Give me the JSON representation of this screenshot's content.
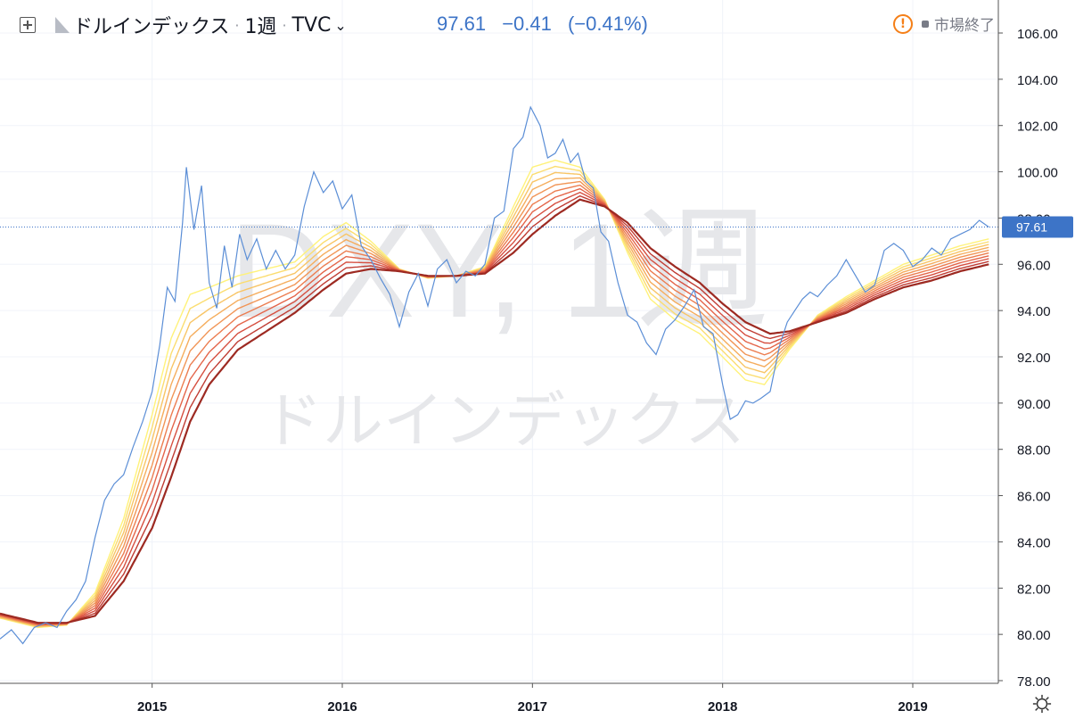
{
  "header": {
    "symbol_name": "ドルインデックス",
    "interval": "1週",
    "exchange": "TVC",
    "icons": [
      "plus-square-icon",
      "flag-icon",
      "chevron-down-icon"
    ]
  },
  "quote": {
    "last": "97.61",
    "change": "−0.41",
    "change_percent": "(−0.41%)"
  },
  "status": {
    "market": "市場終了"
  },
  "watermark": {
    "line1": "DXY, 1週",
    "line2": "ドルインデックス"
  },
  "colors": {
    "price": "#5b8ed6",
    "ribbon": [
      "#fff27a",
      "#fbdd70",
      "#f8c566",
      "#f5ad5d",
      "#f19556",
      "#ec7d50",
      "#e4654a",
      "#d64f40",
      "#c03d34",
      "#9d2a22"
    ],
    "last_label_bg": "#3d74c7"
  },
  "chart_data": {
    "type": "line",
    "title": "",
    "xlabel": "",
    "ylabel": "",
    "ylim": [
      78,
      106
    ],
    "xlim": [
      2014.2,
      2019.45
    ],
    "grid": true,
    "y_ticks": [
      "78.00",
      "80.00",
      "82.00",
      "84.00",
      "86.00",
      "88.00",
      "90.00",
      "92.00",
      "94.00",
      "96.00",
      "98.00",
      "100.00",
      "102.00",
      "104.00",
      "106.00"
    ],
    "x_ticks": [
      {
        "label": "2015",
        "x": 2015
      },
      {
        "label": "2016",
        "x": 2016
      },
      {
        "label": "2017",
        "x": 2017
      },
      {
        "label": "2018",
        "x": 2018
      },
      {
        "label": "2019",
        "x": 2019
      }
    ],
    "last_value_label": "97.61",
    "series": [
      {
        "kind": "price",
        "points": [
          [
            2014.2,
            79.8
          ],
          [
            2014.26,
            80.2
          ],
          [
            2014.32,
            79.6
          ],
          [
            2014.38,
            80.3
          ],
          [
            2014.44,
            80.5
          ],
          [
            2014.5,
            80.3
          ],
          [
            2014.55,
            81.0
          ],
          [
            2014.6,
            81.5
          ],
          [
            2014.65,
            82.3
          ],
          [
            2014.7,
            84.2
          ],
          [
            2014.75,
            85.8
          ],
          [
            2014.8,
            86.5
          ],
          [
            2014.85,
            86.9
          ],
          [
            2014.9,
            88.1
          ],
          [
            2014.95,
            89.2
          ],
          [
            2015.0,
            90.5
          ],
          [
            2015.04,
            92.5
          ],
          [
            2015.08,
            95.0
          ],
          [
            2015.12,
            94.4
          ],
          [
            2015.16,
            97.8
          ],
          [
            2015.18,
            100.2
          ],
          [
            2015.22,
            97.5
          ],
          [
            2015.26,
            99.4
          ],
          [
            2015.3,
            95.2
          ],
          [
            2015.34,
            94.1
          ],
          [
            2015.38,
            96.8
          ],
          [
            2015.42,
            95.0
          ],
          [
            2015.46,
            97.3
          ],
          [
            2015.5,
            96.2
          ],
          [
            2015.55,
            97.1
          ],
          [
            2015.6,
            95.8
          ],
          [
            2015.65,
            96.6
          ],
          [
            2015.7,
            95.8
          ],
          [
            2015.75,
            96.4
          ],
          [
            2015.8,
            98.5
          ],
          [
            2015.85,
            100.0
          ],
          [
            2015.9,
            99.1
          ],
          [
            2015.95,
            99.6
          ],
          [
            2016.0,
            98.4
          ],
          [
            2016.05,
            99.0
          ],
          [
            2016.1,
            96.8
          ],
          [
            2016.15,
            96.2
          ],
          [
            2016.2,
            95.4
          ],
          [
            2016.25,
            94.7
          ],
          [
            2016.3,
            93.3
          ],
          [
            2016.35,
            94.8
          ],
          [
            2016.4,
            95.6
          ],
          [
            2016.45,
            94.2
          ],
          [
            2016.5,
            95.8
          ],
          [
            2016.55,
            96.2
          ],
          [
            2016.6,
            95.2
          ],
          [
            2016.65,
            95.7
          ],
          [
            2016.7,
            95.5
          ],
          [
            2016.75,
            96.0
          ],
          [
            2016.8,
            98.0
          ],
          [
            2016.85,
            98.3
          ],
          [
            2016.9,
            101.0
          ],
          [
            2016.95,
            101.5
          ],
          [
            2016.99,
            102.8
          ],
          [
            2017.04,
            102.0
          ],
          [
            2017.08,
            100.6
          ],
          [
            2017.12,
            100.8
          ],
          [
            2017.16,
            101.4
          ],
          [
            2017.2,
            100.4
          ],
          [
            2017.24,
            100.8
          ],
          [
            2017.28,
            99.6
          ],
          [
            2017.32,
            99.3
          ],
          [
            2017.36,
            97.4
          ],
          [
            2017.4,
            97.0
          ],
          [
            2017.45,
            95.2
          ],
          [
            2017.5,
            93.8
          ],
          [
            2017.55,
            93.5
          ],
          [
            2017.6,
            92.6
          ],
          [
            2017.65,
            92.1
          ],
          [
            2017.7,
            93.2
          ],
          [
            2017.75,
            93.6
          ],
          [
            2017.8,
            94.2
          ],
          [
            2017.85,
            94.9
          ],
          [
            2017.9,
            93.3
          ],
          [
            2017.95,
            93.0
          ],
          [
            2018.0,
            90.8
          ],
          [
            2018.04,
            89.3
          ],
          [
            2018.08,
            89.5
          ],
          [
            2018.12,
            90.1
          ],
          [
            2018.16,
            90.0
          ],
          [
            2018.2,
            90.2
          ],
          [
            2018.25,
            90.5
          ],
          [
            2018.3,
            92.5
          ],
          [
            2018.34,
            93.5
          ],
          [
            2018.38,
            94.0
          ],
          [
            2018.42,
            94.5
          ],
          [
            2018.46,
            94.8
          ],
          [
            2018.5,
            94.6
          ],
          [
            2018.55,
            95.1
          ],
          [
            2018.6,
            95.5
          ],
          [
            2018.65,
            96.2
          ],
          [
            2018.7,
            95.5
          ],
          [
            2018.75,
            94.8
          ],
          [
            2018.8,
            95.1
          ],
          [
            2018.85,
            96.6
          ],
          [
            2018.9,
            96.9
          ],
          [
            2018.95,
            96.6
          ],
          [
            2019.0,
            95.9
          ],
          [
            2019.05,
            96.2
          ],
          [
            2019.1,
            96.7
          ],
          [
            2019.15,
            96.4
          ],
          [
            2019.2,
            97.1
          ],
          [
            2019.25,
            97.3
          ],
          [
            2019.3,
            97.5
          ],
          [
            2019.35,
            97.9
          ],
          [
            2019.4,
            97.61
          ]
        ]
      },
      {
        "kind": "ribbon-fast",
        "points": [
          [
            2014.2,
            80.7
          ],
          [
            2014.4,
            80.3
          ],
          [
            2014.55,
            80.4
          ],
          [
            2014.7,
            81.8
          ],
          [
            2014.85,
            85.0
          ],
          [
            2015.0,
            89.5
          ],
          [
            2015.1,
            92.8
          ],
          [
            2015.2,
            94.7
          ],
          [
            2015.3,
            95.0
          ],
          [
            2015.45,
            95.5
          ],
          [
            2015.6,
            95.8
          ],
          [
            2015.75,
            96.1
          ],
          [
            2015.9,
            97.2
          ],
          [
            2016.02,
            97.8
          ],
          [
            2016.15,
            97.0
          ],
          [
            2016.3,
            95.8
          ],
          [
            2016.45,
            95.4
          ],
          [
            2016.6,
            95.5
          ],
          [
            2016.75,
            95.9
          ],
          [
            2016.9,
            98.5
          ],
          [
            2017.0,
            100.2
          ],
          [
            2017.12,
            100.5
          ],
          [
            2017.25,
            100.2
          ],
          [
            2017.38,
            98.8
          ],
          [
            2017.5,
            96.5
          ],
          [
            2017.62,
            94.5
          ],
          [
            2017.75,
            93.6
          ],
          [
            2017.88,
            93.0
          ],
          [
            2018.0,
            92.0
          ],
          [
            2018.12,
            91.0
          ],
          [
            2018.22,
            90.8
          ],
          [
            2018.35,
            92.3
          ],
          [
            2018.5,
            93.8
          ],
          [
            2018.65,
            94.6
          ],
          [
            2018.8,
            95.3
          ],
          [
            2018.95,
            96.0
          ],
          [
            2019.1,
            96.4
          ],
          [
            2019.25,
            96.8
          ],
          [
            2019.4,
            97.1
          ]
        ]
      },
      {
        "kind": "ribbon-slow",
        "points": [
          [
            2014.2,
            80.9
          ],
          [
            2014.4,
            80.5
          ],
          [
            2014.55,
            80.5
          ],
          [
            2014.7,
            80.8
          ],
          [
            2014.85,
            82.3
          ],
          [
            2015.0,
            84.6
          ],
          [
            2015.1,
            86.8
          ],
          [
            2015.2,
            89.2
          ],
          [
            2015.3,
            90.8
          ],
          [
            2015.45,
            92.3
          ],
          [
            2015.6,
            93.1
          ],
          [
            2015.75,
            93.9
          ],
          [
            2015.9,
            94.9
          ],
          [
            2016.02,
            95.6
          ],
          [
            2016.15,
            95.8
          ],
          [
            2016.3,
            95.7
          ],
          [
            2016.45,
            95.5
          ],
          [
            2016.6,
            95.5
          ],
          [
            2016.75,
            95.6
          ],
          [
            2016.9,
            96.5
          ],
          [
            2017.0,
            97.3
          ],
          [
            2017.12,
            98.1
          ],
          [
            2017.25,
            98.8
          ],
          [
            2017.38,
            98.5
          ],
          [
            2017.5,
            97.8
          ],
          [
            2017.62,
            96.7
          ],
          [
            2017.75,
            95.9
          ],
          [
            2017.88,
            95.2
          ],
          [
            2018.0,
            94.3
          ],
          [
            2018.12,
            93.5
          ],
          [
            2018.25,
            93.0
          ],
          [
            2018.35,
            93.1
          ],
          [
            2018.5,
            93.5
          ],
          [
            2018.65,
            93.9
          ],
          [
            2018.8,
            94.5
          ],
          [
            2018.95,
            95.0
          ],
          [
            2019.1,
            95.3
          ],
          [
            2019.25,
            95.7
          ],
          [
            2019.4,
            96.0
          ]
        ]
      }
    ]
  }
}
